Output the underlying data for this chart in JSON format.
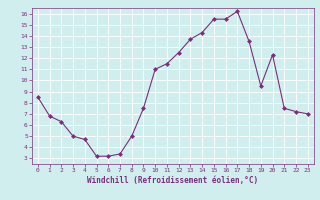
{
  "x": [
    0,
    1,
    2,
    3,
    4,
    5,
    6,
    7,
    8,
    9,
    10,
    11,
    12,
    13,
    14,
    15,
    16,
    17,
    18,
    19,
    20,
    21,
    22,
    23
  ],
  "y": [
    8.5,
    6.8,
    6.3,
    5.0,
    4.7,
    3.2,
    3.2,
    3.4,
    5.0,
    7.5,
    11.0,
    11.5,
    12.5,
    13.7,
    14.3,
    15.5,
    15.5,
    16.2,
    13.5,
    9.5,
    12.3,
    7.5,
    7.2,
    7.0
  ],
  "line_color": "#7b2f7b",
  "marker": "D",
  "marker_size": 2,
  "bg_color": "#d0eeee",
  "grid_color": "#ffffff",
  "xlabel": "Windchill (Refroidissement éolien,°C)",
  "xlabel_color": "#7b2f7b",
  "tick_color": "#7b2f7b",
  "xlim": [
    -0.5,
    23.5
  ],
  "ylim": [
    2.5,
    16.5
  ],
  "yticks": [
    3,
    4,
    5,
    6,
    7,
    8,
    9,
    10,
    11,
    12,
    13,
    14,
    15,
    16
  ],
  "xticks": [
    0,
    1,
    2,
    3,
    4,
    5,
    6,
    7,
    8,
    9,
    10,
    11,
    12,
    13,
    14,
    15,
    16,
    17,
    18,
    19,
    20,
    21,
    22,
    23
  ]
}
